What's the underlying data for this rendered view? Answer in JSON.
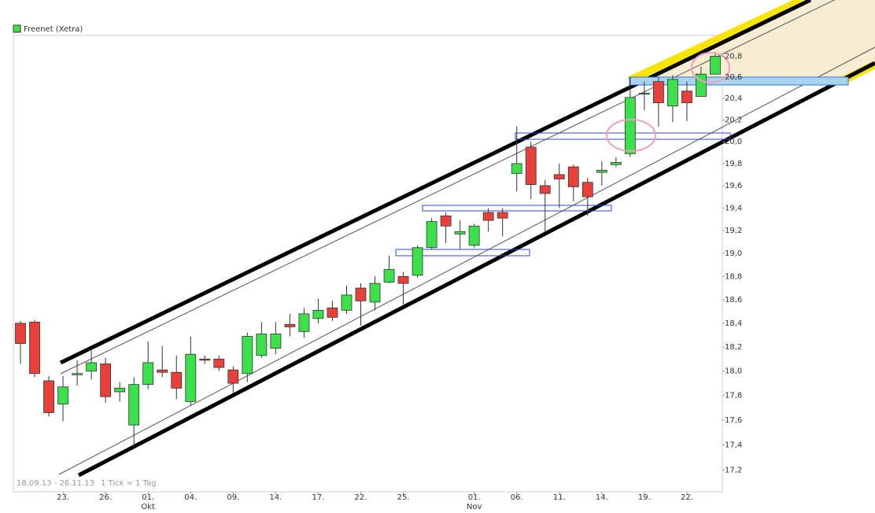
{
  "chart_data": {
    "type": "candlestick",
    "legend": "Freenet (Xetra)",
    "date_range": "18.09.13 - 26.11.13",
    "tick_note": "1 Tick = 1 Tag",
    "up_color": "#3be04a",
    "down_color": "#e8413c",
    "log_scale": true,
    "categories": [
      null,
      null,
      null,
      "23.",
      null,
      null,
      "26.",
      null,
      null,
      "01.",
      null,
      null,
      "04.",
      null,
      null,
      "09.",
      null,
      null,
      "14.",
      null,
      null,
      "17.",
      null,
      null,
      "22.",
      null,
      null,
      "25.",
      null,
      null,
      null,
      null,
      "01.",
      null,
      null,
      "06.",
      null,
      null,
      "11.",
      null,
      null,
      "14.",
      null,
      null,
      "19.",
      null,
      null,
      "22.",
      null,
      null
    ],
    "months": [
      null,
      null,
      null,
      null,
      null,
      null,
      null,
      null,
      null,
      "Okt",
      null,
      null,
      null,
      null,
      null,
      null,
      null,
      null,
      null,
      null,
      null,
      null,
      null,
      null,
      null,
      null,
      null,
      null,
      null,
      null,
      null,
      null,
      "Nov",
      null,
      null,
      null,
      null,
      null,
      null,
      null,
      null,
      null,
      null,
      null,
      null,
      null,
      null,
      null,
      null,
      null
    ],
    "open": [
      18.4,
      18.41,
      17.92,
      17.73,
      17.97,
      18.0,
      18.06,
      17.83,
      17.56,
      17.89,
      18.01,
      17.99,
      17.75,
      18.1,
      18.1,
      18.01,
      17.98,
      18.13,
      18.19,
      18.39,
      18.33,
      18.44,
      18.53,
      18.51,
      18.7,
      18.58,
      18.75,
      18.8,
      18.81,
      19.05,
      19.33,
      19.17,
      19.07,
      19.36,
      19.36,
      19.71,
      19.95,
      19.6,
      19.7,
      19.77,
      19.63,
      19.72,
      19.79,
      19.89,
      20.44,
      20.56,
      20.33,
      20.47,
      20.42,
      20.63
    ],
    "high": [
      18.42,
      18.43,
      17.96,
      17.96,
      18.09,
      18.17,
      18.11,
      17.91,
      17.95,
      18.25,
      18.21,
      18.13,
      18.29,
      18.13,
      18.13,
      18.04,
      18.32,
      18.41,
      18.41,
      18.48,
      18.53,
      18.61,
      18.59,
      18.72,
      18.74,
      18.8,
      18.98,
      18.84,
      19.07,
      19.31,
      19.36,
      19.29,
      19.26,
      19.4,
      19.4,
      20.14,
      20.0,
      19.65,
      19.8,
      19.79,
      19.67,
      19.82,
      19.86,
      20.6,
      20.56,
      20.6,
      20.62,
      20.56,
      20.7,
      20.84
    ],
    "low": [
      18.06,
      17.95,
      17.63,
      17.59,
      17.88,
      17.93,
      17.74,
      17.75,
      17.38,
      17.85,
      17.95,
      17.77,
      17.72,
      18.06,
      18.0,
      17.82,
      17.91,
      18.11,
      18.14,
      18.29,
      18.28,
      18.4,
      18.42,
      18.48,
      18.38,
      18.51,
      18.74,
      18.56,
      18.79,
      19.04,
      19.09,
      19.04,
      19.05,
      19.19,
      19.15,
      19.55,
      19.48,
      19.18,
      19.4,
      19.46,
      19.33,
      19.6,
      19.77,
      19.86,
      20.29,
      20.14,
      20.18,
      20.19,
      20.42,
      20.63
    ],
    "close": [
      18.23,
      17.98,
      17.66,
      17.87,
      17.98,
      18.07,
      17.79,
      17.86,
      17.89,
      18.07,
      17.99,
      17.86,
      18.14,
      18.09,
      18.03,
      17.9,
      18.29,
      18.31,
      18.31,
      18.37,
      18.48,
      18.51,
      18.45,
      18.64,
      18.59,
      18.74,
      18.86,
      18.74,
      19.05,
      19.28,
      19.24,
      19.19,
      19.24,
      19.29,
      19.31,
      19.8,
      19.61,
      19.53,
      19.66,
      19.59,
      19.5,
      19.74,
      19.81,
      20.41,
      20.45,
      20.36,
      20.58,
      20.36,
      20.63,
      20.8
    ],
    "ylim": [
      17.03,
      21.0
    ],
    "yticks": [
      {
        "value": 17.2,
        "label": "17,2"
      },
      {
        "value": 17.4,
        "label": "17,4"
      },
      {
        "value": 17.6,
        "label": "17,6"
      },
      {
        "value": 17.8,
        "label": "17,8"
      },
      {
        "value": 18.0,
        "label": "18,0"
      },
      {
        "value": 18.2,
        "label": "18,2"
      },
      {
        "value": 18.4,
        "label": "18,4"
      },
      {
        "value": 18.6,
        "label": "18,6"
      },
      {
        "value": 18.8,
        "label": "18,8"
      },
      {
        "value": 19.0,
        "label": "19,0"
      },
      {
        "value": 19.2,
        "label": "19,2"
      },
      {
        "value": 19.4,
        "label": "19,4"
      },
      {
        "value": 19.6,
        "label": "19,6"
      },
      {
        "value": 19.8,
        "label": "19,8"
      },
      {
        "value": 20.0,
        "label": "20,0"
      },
      {
        "value": 20.2,
        "label": "20,2"
      },
      {
        "value": 20.4,
        "label": "20,4"
      },
      {
        "value": 20.6,
        "label": "20,6"
      },
      {
        "value": 20.8,
        "label": "20,8"
      }
    ]
  }
}
